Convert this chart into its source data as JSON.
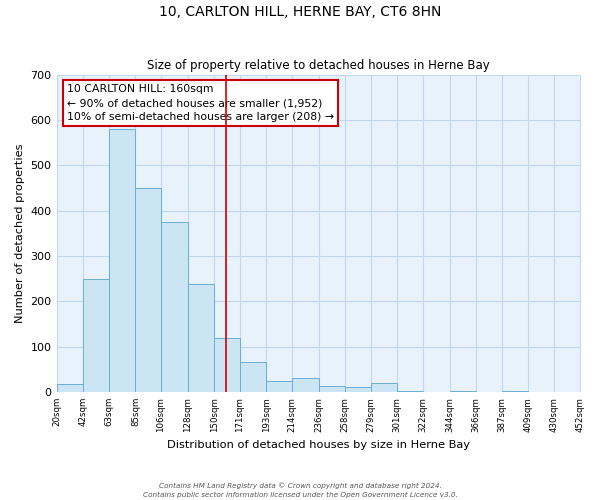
{
  "title": "10, CARLTON HILL, HERNE BAY, CT6 8HN",
  "subtitle": "Size of property relative to detached houses in Herne Bay",
  "xlabel": "Distribution of detached houses by size in Herne Bay",
  "ylabel": "Number of detached properties",
  "bin_edges": [
    20,
    42,
    63,
    85,
    106,
    128,
    150,
    171,
    193,
    214,
    236,
    258,
    279,
    301,
    322,
    344,
    366,
    387,
    409,
    430,
    452
  ],
  "bar_heights": [
    18,
    248,
    580,
    450,
    375,
    238,
    120,
    67,
    25,
    30,
    13,
    10,
    20,
    3,
    0,
    1,
    0,
    3,
    0,
    0
  ],
  "bar_color": "#cce5f5",
  "bar_edge_color": "#6aaed6",
  "vline_x": 160,
  "vline_color": "#cc0000",
  "annotation_text": "10 CARLTON HILL: 160sqm\n← 90% of detached houses are smaller (1,952)\n10% of semi-detached houses are larger (208) →",
  "annotation_box_color": "#cc0000",
  "ylim": [
    0,
    700
  ],
  "yticks": [
    0,
    100,
    200,
    300,
    400,
    500,
    600,
    700
  ],
  "grid_color": "#c0d8ec",
  "background_color": "#e8f2fb",
  "footer_line1": "Contains HM Land Registry data © Crown copyright and database right 2024.",
  "footer_line2": "Contains public sector information licensed under the Open Government Licence v3.0."
}
